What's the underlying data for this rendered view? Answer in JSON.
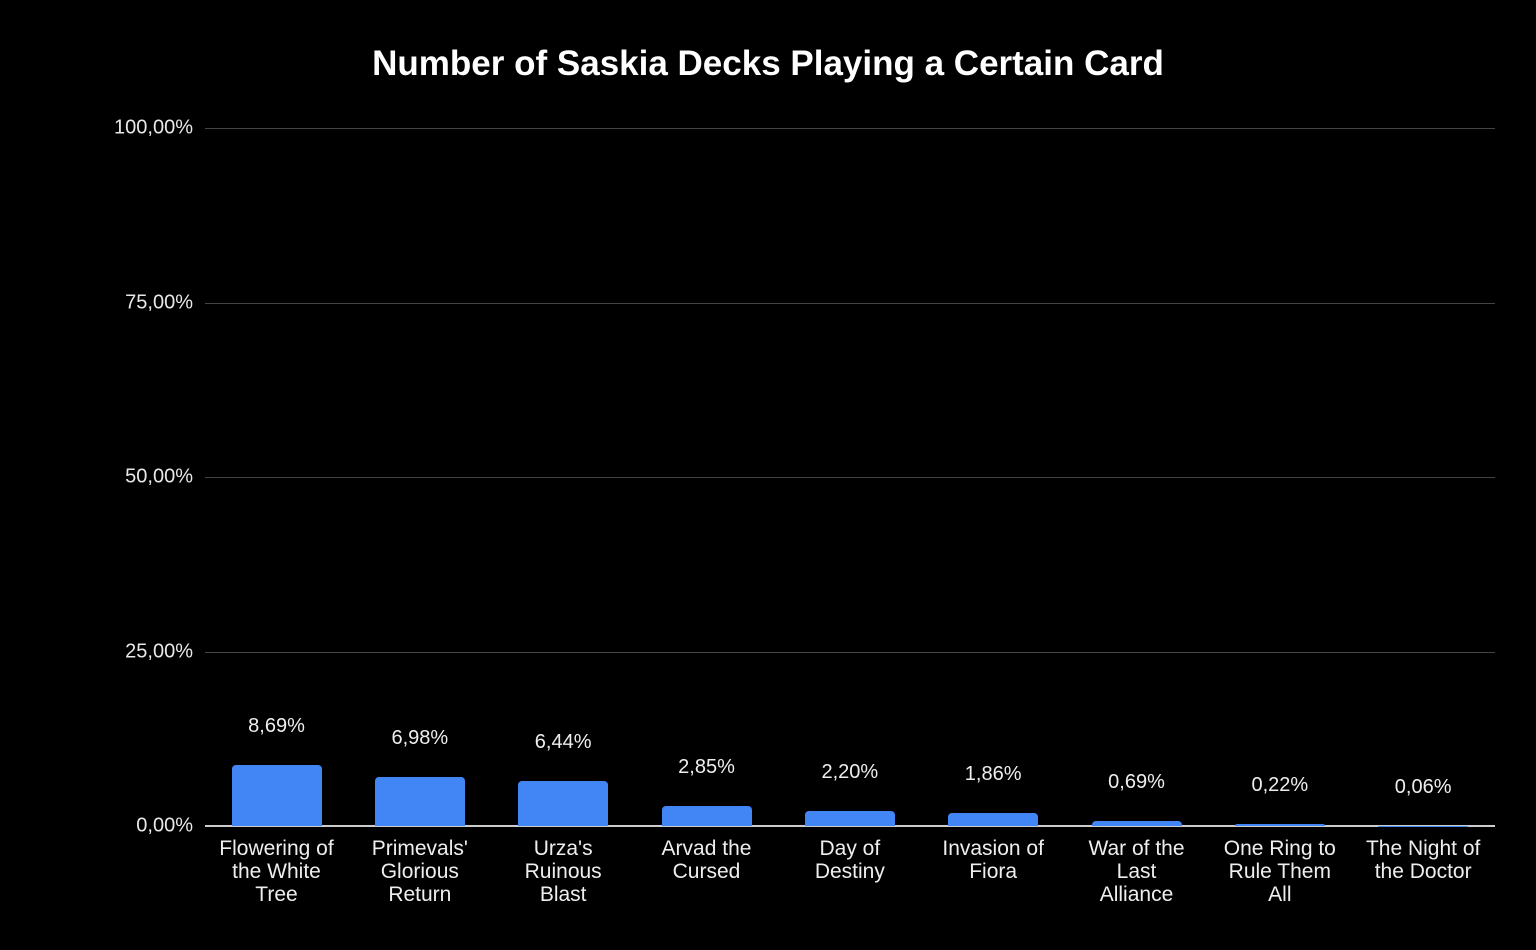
{
  "chart_data": {
    "type": "bar",
    "title": "Number of Saskia Decks Playing a Certain Card",
    "xlabel": "",
    "ylabel": "",
    "ylim": [
      0,
      100
    ],
    "yticks": [
      "0,00%",
      "25,00%",
      "50,00%",
      "75,00%",
      "100,00%"
    ],
    "grid": true,
    "legend": null,
    "categories": [
      "Flowering of the White Tree",
      "Primevals' Glorious Return",
      "Urza's Ruinous Blast",
      "Arvad the Cursed",
      "Day of Destiny",
      "Invasion of Fiora",
      "War of the Last Alliance",
      "One Ring to Rule Them All",
      "The Night of the Doctor"
    ],
    "category_lines": [
      [
        "Flowering of",
        "the White",
        "Tree"
      ],
      [
        "Primevals'",
        "Glorious",
        "Return"
      ],
      [
        "Urza's",
        "Ruinous",
        "Blast"
      ],
      [
        "Arvad the",
        "Cursed"
      ],
      [
        "Day of",
        "Destiny"
      ],
      [
        "Invasion of",
        "Fiora"
      ],
      [
        "War of the",
        "Last",
        "Alliance"
      ],
      [
        "One Ring to",
        "Rule Them",
        "All"
      ],
      [
        "The Night of",
        "the Doctor"
      ]
    ],
    "values": [
      8.69,
      6.98,
      6.44,
      2.85,
      2.2,
      1.86,
      0.69,
      0.22,
      0.06
    ],
    "data_labels": [
      "8,69%",
      "6,98%",
      "6,44%",
      "2,85%",
      "2,20%",
      "1,86%",
      "0,69%",
      "0,22%",
      "0,06%"
    ],
    "bar_color": "#4285f4",
    "background": "#000000"
  }
}
